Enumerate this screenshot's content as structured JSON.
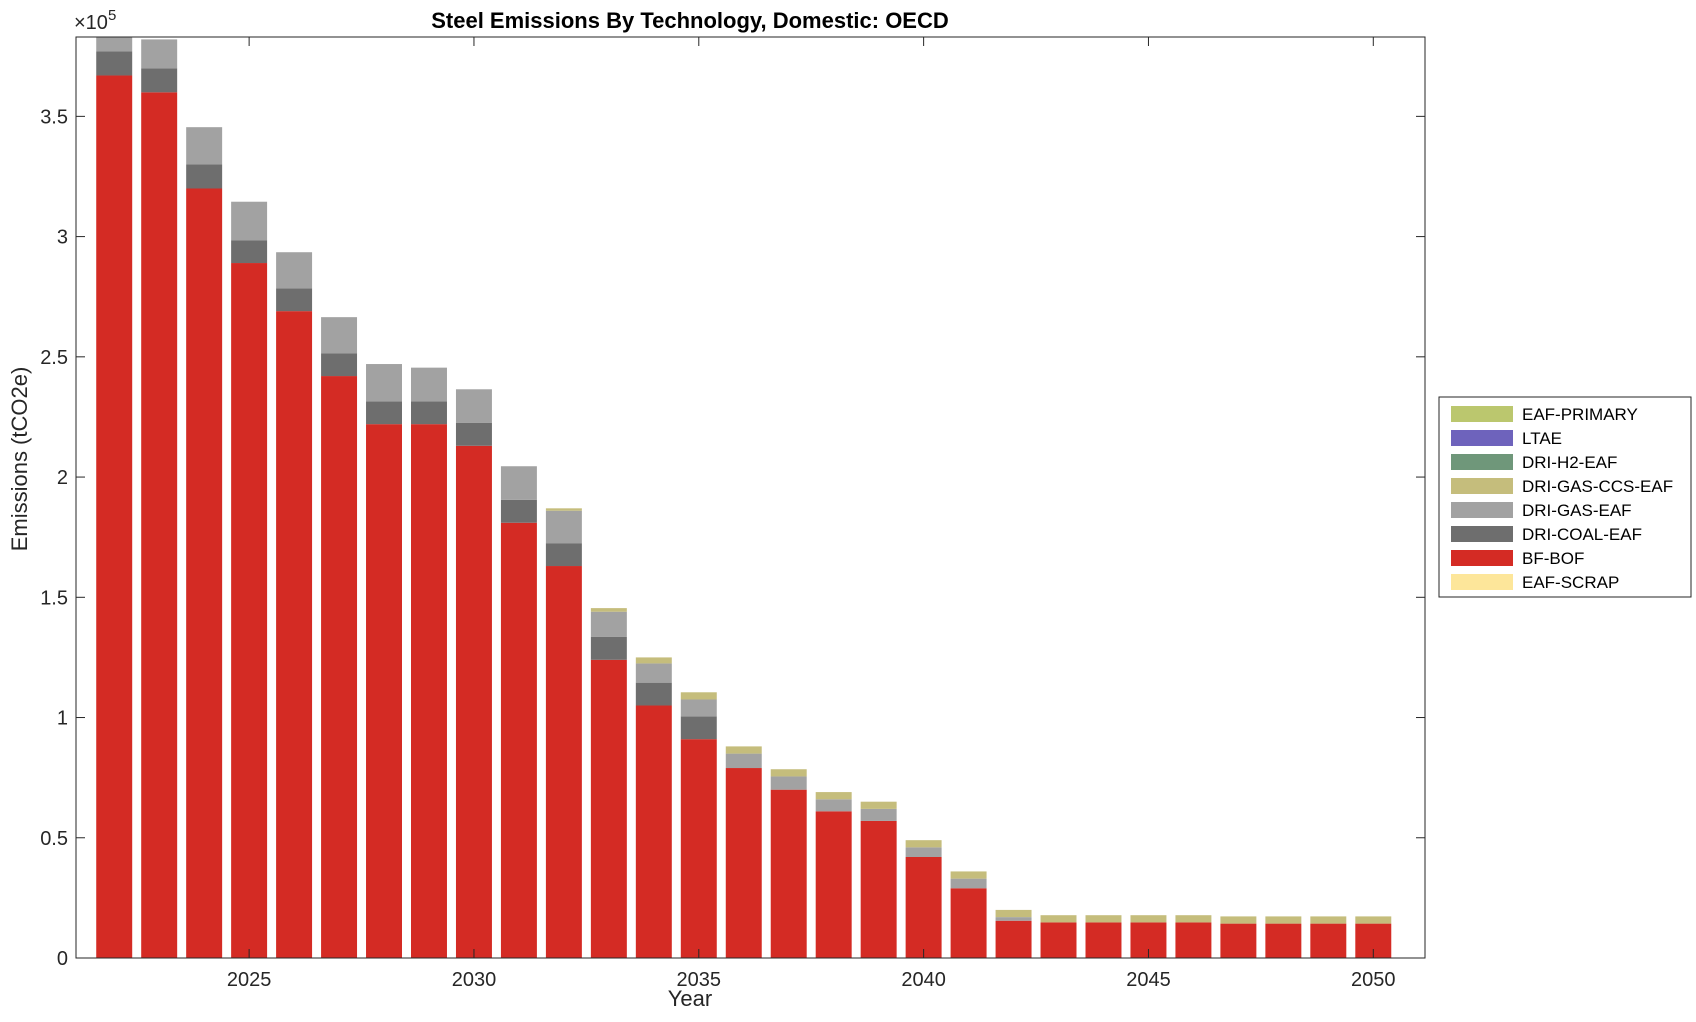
{
  "chart_data": {
    "type": "bar",
    "stacked": true,
    "title": "Steel Emissions By Technology, Domestic: OECD",
    "xlabel": "Year",
    "ylabel": "Emissions (tCO2e)",
    "y_exponent_label": "×10",
    "y_exponent_power": "5",
    "x": [
      2022,
      2023,
      2024,
      2025,
      2026,
      2027,
      2028,
      2029,
      2030,
      2031,
      2032,
      2033,
      2034,
      2035,
      2036,
      2037,
      2038,
      2039,
      2040,
      2041,
      2042,
      2043,
      2044,
      2045,
      2046,
      2047,
      2048,
      2049,
      2050
    ],
    "xlim": [
      2021.15,
      2051.15
    ],
    "ylim": [
      0,
      3.83
    ],
    "y_unit_scale": 100000,
    "x_ticks": [
      2025,
      2030,
      2035,
      2040,
      2045,
      2050
    ],
    "y_ticks": [
      0,
      0.5,
      1,
      1.5,
      2,
      2.5,
      3,
      3.5
    ],
    "y_tick_labels": [
      "0",
      "0.5",
      "1",
      "1.5",
      "2",
      "2.5",
      "3",
      "3.5"
    ],
    "grid": false,
    "legend_position": "right",
    "series": [
      {
        "name": "EAF-SCRAP",
        "color": "#fde69a",
        "values": [
          0,
          0,
          0,
          0,
          0,
          0,
          0,
          0,
          0,
          0,
          0,
          0,
          0,
          0,
          0,
          0,
          0,
          0,
          0,
          0,
          0,
          0,
          0,
          0,
          0,
          0,
          0,
          0,
          0
        ]
      },
      {
        "name": "BF-BOF",
        "color": "#d42b24",
        "values": [
          3.67,
          3.6,
          3.2,
          2.89,
          2.69,
          2.42,
          2.22,
          2.22,
          2.13,
          1.81,
          1.63,
          1.24,
          1.05,
          0.91,
          0.79,
          0.7,
          0.61,
          0.57,
          0.42,
          0.29,
          0.155,
          0.148,
          0.148,
          0.148,
          0.148,
          0.143,
          0.143,
          0.143,
          0.143
        ]
      },
      {
        "name": "DRI-COAL-EAF",
        "color": "#6e6e6e",
        "values": [
          0.1,
          0.1,
          0.1,
          0.095,
          0.095,
          0.095,
          0.095,
          0.095,
          0.095,
          0.095,
          0.095,
          0.095,
          0.095,
          0.095,
          0,
          0,
          0,
          0,
          0,
          0,
          0,
          0,
          0,
          0,
          0,
          0,
          0,
          0,
          0
        ]
      },
      {
        "name": "DRI-GAS-EAF",
        "color": "#a2a2a2",
        "values": [
          0.07,
          0.12,
          0.155,
          0.16,
          0.15,
          0.15,
          0.155,
          0.14,
          0.14,
          0.14,
          0.135,
          0.105,
          0.08,
          0.07,
          0.06,
          0.055,
          0.05,
          0.05,
          0.04,
          0.04,
          0.015,
          0,
          0,
          0,
          0,
          0,
          0,
          0,
          0
        ]
      },
      {
        "name": "DRI-GAS-CCS-EAF",
        "color": "#c5bd7c",
        "values": [
          0,
          0,
          0,
          0,
          0,
          0,
          0,
          0,
          0,
          0,
          0.01,
          0.015,
          0.025,
          0.03,
          0.03,
          0.03,
          0.03,
          0.03,
          0.03,
          0.03,
          0.03,
          0.03,
          0.03,
          0.03,
          0.03,
          0.03,
          0.03,
          0.03,
          0.03
        ]
      },
      {
        "name": "DRI-H2-EAF",
        "color": "#6f977a",
        "values": [
          0,
          0,
          0,
          0,
          0,
          0,
          0,
          0,
          0,
          0,
          0,
          0,
          0,
          0,
          0,
          0,
          0,
          0,
          0,
          0,
          0,
          0,
          0,
          0,
          0,
          0,
          0,
          0,
          0
        ]
      },
      {
        "name": "LTAE",
        "color": "#6e63bc",
        "values": [
          0,
          0,
          0,
          0,
          0,
          0,
          0,
          0,
          0,
          0,
          0,
          0,
          0,
          0,
          0,
          0,
          0,
          0,
          0,
          0,
          0,
          0,
          0,
          0,
          0,
          0,
          0,
          0,
          0
        ]
      },
      {
        "name": "EAF-PRIMARY",
        "color": "#bbc76e",
        "values": [
          0,
          0,
          0,
          0,
          0,
          0,
          0,
          0,
          0,
          0,
          0,
          0,
          0,
          0,
          0,
          0,
          0,
          0,
          0,
          0,
          0,
          0,
          0,
          0,
          0,
          0,
          0,
          0,
          0
        ]
      }
    ],
    "legend_order": [
      "EAF-PRIMARY",
      "LTAE",
      "DRI-H2-EAF",
      "DRI-GAS-CCS-EAF",
      "DRI-GAS-EAF",
      "DRI-COAL-EAF",
      "BF-BOF",
      "EAF-SCRAP"
    ]
  }
}
